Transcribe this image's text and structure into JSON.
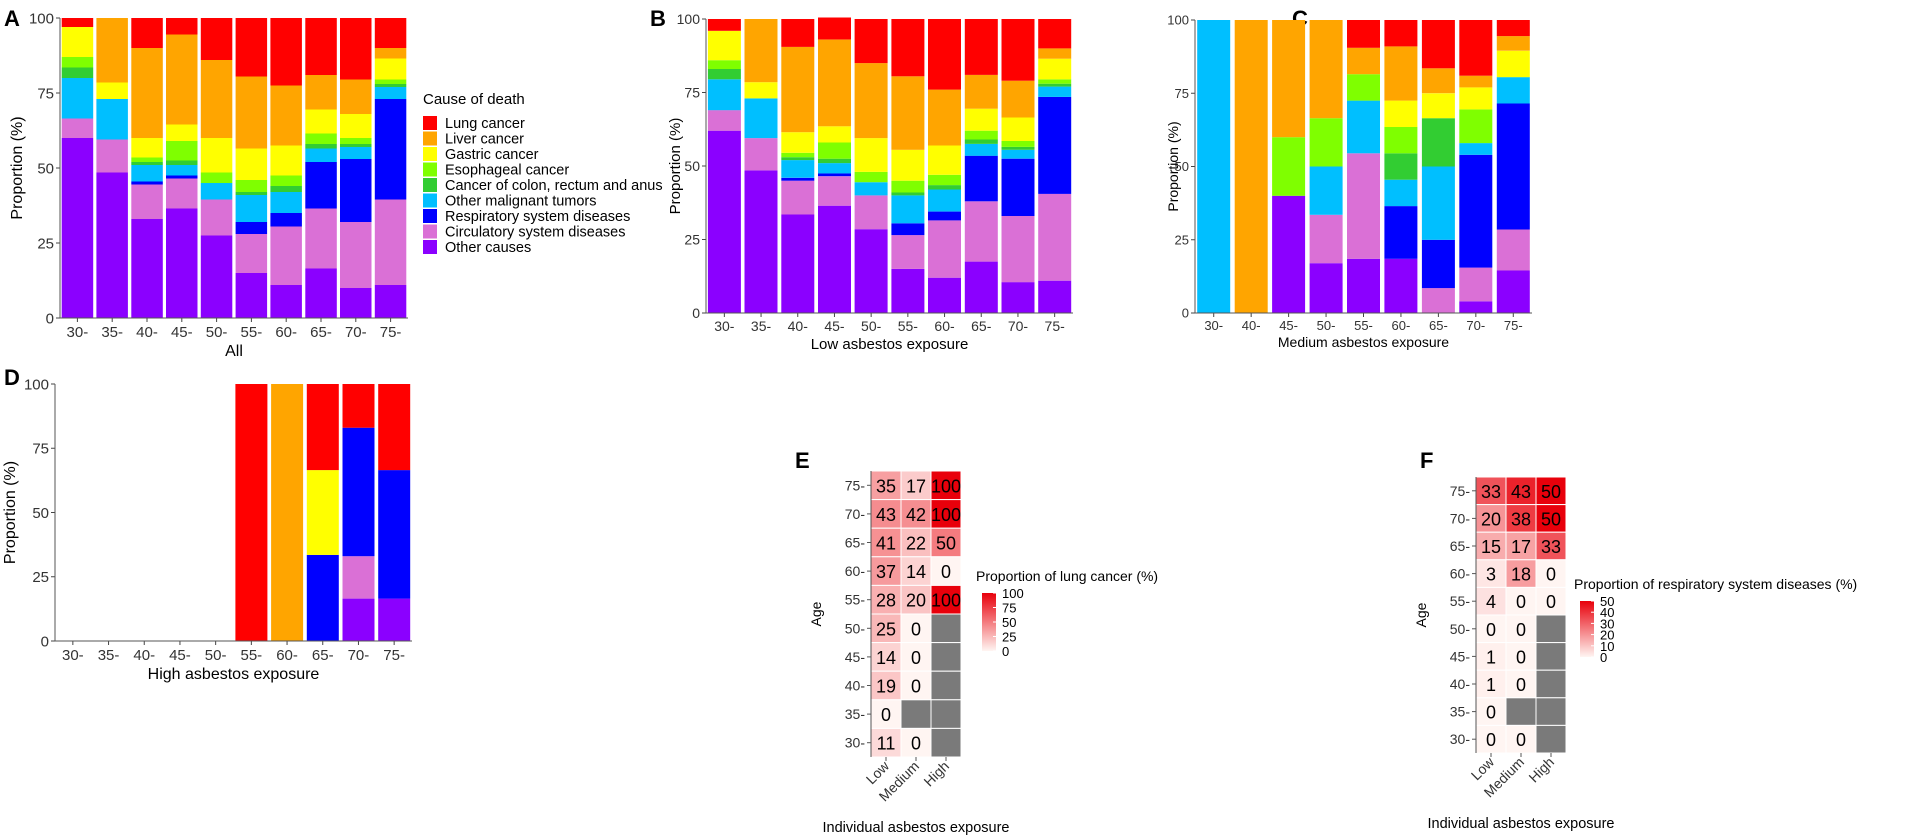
{
  "colors": {
    "Lung cancer": "#ff0000",
    "Liver cancer": "#ffa500",
    "Gastric cancer": "#ffff00",
    "Esophageal cancer": "#7fff00",
    "Cancer of colon, rectum and anus": "#32cd32",
    "Other malignant tumors": "#00bfff",
    "Respiratory system diseases": "#0000ff",
    "Circulatory system diseases": "#da70d6",
    "Other causes": "#8b00ff",
    "heat_low": "#fff5f2",
    "heat_high": "#e8000b",
    "na": "#7a7a7a"
  },
  "legend": {
    "title": "Cause of death",
    "entries": [
      "Lung cancer",
      "Liver cancer",
      "Gastric cancer",
      "Esophageal cancer",
      "Cancer of colon, rectum and anus",
      "Other malignant tumors",
      "Respiratory system diseases",
      "Circulatory system diseases",
      "Other causes"
    ]
  },
  "chart_data": [
    {
      "panel": "A",
      "type": "bar",
      "stacked": true,
      "xlabel": "All",
      "ylabel": "Proportion (%)",
      "ylim": [
        0,
        100
      ],
      "yticks": [
        "0",
        "25",
        "50",
        "75",
        "100"
      ],
      "categories": [
        "30-",
        "35-",
        "40-",
        "45-",
        "50-",
        "55-",
        "60-",
        "65-",
        "70-",
        "75-"
      ],
      "series": [
        {
          "name": "Other causes",
          "values": [
            60,
            48.5,
            33,
            36.5,
            27.5,
            15,
            11,
            16.5,
            10,
            11
          ]
        },
        {
          "name": "Circulatory system diseases",
          "values": [
            6.5,
            11,
            11.5,
            10,
            12,
            13,
            19.5,
            20,
            22,
            28.5
          ]
        },
        {
          "name": "Respiratory system diseases",
          "values": [
            0,
            0,
            1,
            1,
            0,
            4,
            4.5,
            15.5,
            21,
            33.5
          ]
        },
        {
          "name": "Other malignant tumors",
          "values": [
            13.5,
            13.5,
            5.5,
            3.5,
            5.5,
            9,
            7,
            4.5,
            4,
            4
          ]
        },
        {
          "name": "Cancer of colon, rectum and anus",
          "values": [
            3.5,
            0,
            1,
            1.5,
            0,
            1,
            2,
            1.5,
            1,
            1
          ]
        },
        {
          "name": "Esophageal cancer",
          "values": [
            3.5,
            0,
            1.5,
            6.5,
            3.5,
            4,
            3.5,
            3.5,
            2,
            1.5
          ]
        },
        {
          "name": "Gastric cancer",
          "values": [
            10,
            5.5,
            6.5,
            5.5,
            11.5,
            10.5,
            10,
            8,
            8,
            7
          ]
        },
        {
          "name": "Liver cancer",
          "values": [
            0,
            21.5,
            30,
            30,
            26,
            24,
            20,
            11.5,
            11.5,
            3.5
          ]
        },
        {
          "name": "Lung cancer",
          "values": [
            3,
            0,
            10,
            5.5,
            14,
            19.5,
            22.5,
            19,
            20.5,
            10
          ]
        }
      ]
    },
    {
      "panel": "B",
      "type": "bar",
      "stacked": true,
      "xlabel": "Low asbestos exposure",
      "ylabel": "Proportion (%)",
      "ylim": [
        0,
        100
      ],
      "yticks": [
        "0",
        "25",
        "50",
        "75",
        "100"
      ],
      "categories": [
        "30-",
        "35-",
        "40-",
        "45-",
        "50-",
        "55-",
        "60-",
        "65-",
        "70-",
        "75-"
      ],
      "series": [
        {
          "name": "Other causes",
          "values": [
            62,
            48.5,
            33.5,
            36.5,
            28.5,
            15,
            12,
            17.5,
            10.5,
            11
          ]
        },
        {
          "name": "Circulatory system diseases",
          "values": [
            7,
            11,
            11.5,
            10,
            11.5,
            11.5,
            19.5,
            20.5,
            22.5,
            29.5
          ]
        },
        {
          "name": "Respiratory system diseases",
          "values": [
            0,
            0,
            1,
            1,
            0,
            4,
            3,
            15.5,
            19.5,
            33
          ]
        },
        {
          "name": "Other malignant tumors",
          "values": [
            10.5,
            13.5,
            6,
            3.5,
            4.5,
            9.5,
            7.5,
            4,
            3,
            3.5
          ]
        },
        {
          "name": "Cancer of colon, rectum and anus",
          "values": [
            3.5,
            0,
            1,
            1.5,
            0,
            1,
            1.5,
            1.5,
            1,
            1
          ]
        },
        {
          "name": "Esophageal cancer",
          "values": [
            3,
            0,
            1.5,
            5.5,
            3.5,
            4,
            3.5,
            3,
            2,
            1.5
          ]
        },
        {
          "name": "Gastric cancer",
          "values": [
            10,
            5.5,
            7,
            5.5,
            11.5,
            10.5,
            10,
            7.5,
            8,
            7
          ]
        },
        {
          "name": "Liver cancer",
          "values": [
            0,
            21.5,
            29,
            29.5,
            25.5,
            25,
            19,
            11.5,
            12.5,
            3.5
          ]
        },
        {
          "name": "Lung cancer",
          "values": [
            4,
            0,
            9.5,
            7.5,
            15,
            19.5,
            24,
            19,
            21,
            10
          ]
        }
      ]
    },
    {
      "panel": "C",
      "type": "bar",
      "stacked": true,
      "xlabel": "Medium asbestos exposure",
      "ylabel": "Proportion (%)",
      "ylim": [
        0,
        100
      ],
      "yticks": [
        "0",
        "25",
        "50",
        "75",
        "100"
      ],
      "categories": [
        "30-",
        "40-",
        "45-",
        "50-",
        "55-",
        "60-",
        "65-",
        "70-",
        "75-"
      ],
      "series": [
        {
          "name": "Other causes",
          "values": [
            0,
            0,
            40,
            17,
            18.5,
            18.5,
            0,
            4,
            14.5
          ]
        },
        {
          "name": "Circulatory system diseases",
          "values": [
            0,
            0,
            0,
            16.5,
            36,
            0,
            8.5,
            11.5,
            14
          ]
        },
        {
          "name": "Respiratory system diseases",
          "values": [
            0,
            0,
            0,
            0,
            0,
            18,
            16.5,
            38.5,
            43
          ]
        },
        {
          "name": "Other malignant tumors",
          "values": [
            100,
            0,
            0,
            16.5,
            18,
            9,
            25,
            4,
            9
          ]
        },
        {
          "name": "Cancer of colon, rectum and anus",
          "values": [
            0,
            0,
            0,
            0,
            0,
            9,
            16.5,
            0,
            0
          ]
        },
        {
          "name": "Esophageal cancer",
          "values": [
            0,
            0,
            20,
            16.5,
            9,
            9,
            0,
            11.5,
            0
          ]
        },
        {
          "name": "Gastric cancer",
          "values": [
            0,
            0,
            0,
            0,
            0,
            9,
            8.5,
            7.5,
            9
          ]
        },
        {
          "name": "Liver cancer",
          "values": [
            0,
            100,
            40,
            33.5,
            9,
            18.5,
            8.5,
            4,
            5
          ]
        },
        {
          "name": "Lung cancer",
          "values": [
            0,
            0,
            0,
            0,
            9.5,
            9,
            16.5,
            19,
            5.5
          ]
        }
      ]
    },
    {
      "panel": "D",
      "type": "bar",
      "stacked": true,
      "xlabel": "High asbestos exposure",
      "ylabel": "Proportion (%)",
      "ylim": [
        0,
        100
      ],
      "yticks": [
        "0",
        "25",
        "50",
        "75",
        "100"
      ],
      "categories": [
        "30-",
        "35-",
        "40-",
        "45-",
        "50-",
        "55-",
        "60-",
        "65-",
        "70-",
        "75-"
      ],
      "series": [
        {
          "name": "Other causes",
          "values": [
            0,
            0,
            0,
            0,
            0,
            0,
            0,
            0,
            16.5,
            16.5
          ]
        },
        {
          "name": "Circulatory system diseases",
          "values": [
            0,
            0,
            0,
            0,
            0,
            0,
            0,
            0,
            16.5,
            0
          ]
        },
        {
          "name": "Respiratory system diseases",
          "values": [
            0,
            0,
            0,
            0,
            0,
            0,
            0,
            33.5,
            50,
            50
          ]
        },
        {
          "name": "Gastric cancer",
          "values": [
            0,
            0,
            0,
            0,
            0,
            0,
            0,
            33,
            0,
            0
          ]
        },
        {
          "name": "Liver cancer",
          "values": [
            0,
            0,
            0,
            0,
            0,
            0,
            100,
            0,
            0,
            0
          ]
        },
        {
          "name": "Lung cancer",
          "values": [
            0,
            0,
            0,
            0,
            0,
            100,
            0,
            33.5,
            17,
            33.5
          ]
        }
      ]
    },
    {
      "panel": "E",
      "type": "heatmap",
      "xlabel": "Individual asbestos exposure",
      "ylabel": "Age",
      "columns": [
        "Low",
        "Medium",
        "High"
      ],
      "rows": [
        "75-",
        "70-",
        "65-",
        "60-",
        "55-",
        "50-",
        "45-",
        "40-",
        "35-",
        "30-"
      ],
      "values": [
        [
          35,
          17,
          100
        ],
        [
          43,
          42,
          100
        ],
        [
          41,
          22,
          50
        ],
        [
          37,
          14,
          0
        ],
        [
          28,
          20,
          100
        ],
        [
          25,
          0,
          null
        ],
        [
          14,
          0,
          null
        ],
        [
          19,
          0,
          null
        ],
        [
          0,
          null,
          null
        ],
        [
          11,
          0,
          null
        ]
      ],
      "legend_title": "Proportion of lung cancer (%)",
      "legend_max": 100,
      "legend_ticks": [
        "100",
        "75",
        "50",
        "25",
        "0"
      ]
    },
    {
      "panel": "F",
      "type": "heatmap",
      "xlabel": "Individual asbestos exposure",
      "ylabel": "Age",
      "columns": [
        "Low",
        "Medium",
        "High"
      ],
      "rows": [
        "75-",
        "70-",
        "65-",
        "60-",
        "55-",
        "50-",
        "45-",
        "40-",
        "35-",
        "30-"
      ],
      "values": [
        [
          33,
          43,
          50
        ],
        [
          20,
          38,
          50
        ],
        [
          15,
          17,
          33
        ],
        [
          3,
          18,
          0
        ],
        [
          4,
          0,
          0
        ],
        [
          0,
          0,
          null
        ],
        [
          1,
          0,
          null
        ],
        [
          1,
          0,
          null
        ],
        [
          0,
          null,
          null
        ],
        [
          0,
          0,
          null
        ]
      ],
      "legend_title": "Proportion of respiratory system diseases (%)",
      "legend_max": 50,
      "legend_ticks": [
        "50",
        "40",
        "30",
        "20",
        "10",
        "0"
      ]
    }
  ]
}
